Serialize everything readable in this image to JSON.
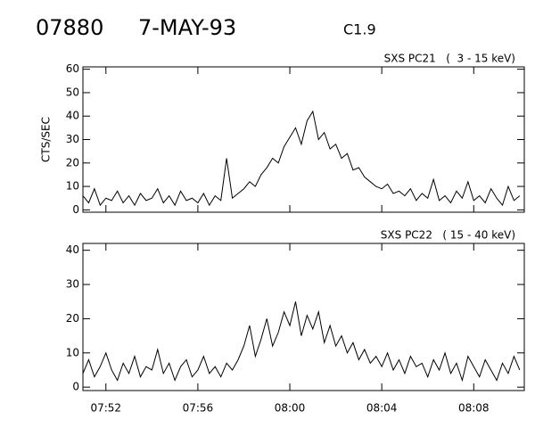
{
  "header": {
    "id": "07880",
    "date": "7-MAY-93",
    "class": "C1.9"
  },
  "chart_data": [
    {
      "type": "line",
      "title": "SXS PC21   (  3 - 15 keV)",
      "ylabel": "CTS/SEC",
      "xlim": [
        471,
        490.2
      ],
      "ylim": [
        -1,
        61
      ],
      "yticks": [
        0,
        10,
        20,
        30,
        40,
        50,
        60
      ],
      "x": [
        471,
        471.25,
        471.5,
        471.75,
        472,
        472.25,
        472.5,
        472.75,
        473,
        473.25,
        473.5,
        473.75,
        474,
        474.25,
        474.5,
        474.75,
        475,
        475.25,
        475.5,
        475.75,
        476,
        476.25,
        476.5,
        476.75,
        477,
        477.25,
        477.5,
        477.75,
        478,
        478.25,
        478.5,
        478.75,
        479,
        479.25,
        479.5,
        479.75,
        480,
        480.25,
        480.5,
        480.75,
        481,
        481.25,
        481.5,
        481.75,
        482,
        482.25,
        482.5,
        482.75,
        483,
        483.25,
        483.5,
        483.75,
        484,
        484.25,
        484.5,
        484.75,
        485,
        485.25,
        485.5,
        485.75,
        486,
        486.25,
        486.5,
        486.75,
        487,
        487.25,
        487.5,
        487.75,
        488,
        488.25,
        488.5,
        488.75,
        489,
        489.25,
        489.5,
        489.75,
        490
      ],
      "values": [
        6,
        3,
        9,
        2,
        5,
        4,
        8,
        3,
        6,
        2,
        7,
        4,
        5,
        9,
        3,
        6,
        2,
        8,
        4,
        5,
        3,
        7,
        2,
        6,
        4,
        22,
        5,
        7,
        9,
        12,
        10,
        15,
        18,
        22,
        20,
        27,
        31,
        35,
        28,
        38,
        42,
        30,
        33,
        26,
        28,
        22,
        24,
        17,
        18,
        14,
        12,
        10,
        9,
        11,
        7,
        8,
        6,
        9,
        4,
        7,
        5,
        13,
        4,
        6,
        3,
        8,
        5,
        12,
        4,
        6,
        3,
        9,
        5,
        2,
        10,
        4,
        6
      ],
      "color": "#000000"
    },
    {
      "type": "line",
      "title": "SXS PC22   ( 15 - 40 keV)",
      "xlim": [
        471,
        490.2
      ],
      "ylim": [
        -1,
        42
      ],
      "yticks": [
        0,
        10,
        20,
        30,
        40
      ],
      "xticks": [
        {
          "value": 472,
          "label": "07:52"
        },
        {
          "value": 476,
          "label": "07:56"
        },
        {
          "value": 480,
          "label": "08:00"
        },
        {
          "value": 484,
          "label": "08:04"
        },
        {
          "value": 488,
          "label": "08:08"
        }
      ],
      "x": [
        471,
        471.25,
        471.5,
        471.75,
        472,
        472.25,
        472.5,
        472.75,
        473,
        473.25,
        473.5,
        473.75,
        474,
        474.25,
        474.5,
        474.75,
        475,
        475.25,
        475.5,
        475.75,
        476,
        476.25,
        476.5,
        476.75,
        477,
        477.25,
        477.5,
        477.75,
        478,
        478.25,
        478.5,
        478.75,
        479,
        479.25,
        479.5,
        479.75,
        480,
        480.25,
        480.5,
        480.75,
        481,
        481.25,
        481.5,
        481.75,
        482,
        482.25,
        482.5,
        482.75,
        483,
        483.25,
        483.5,
        483.75,
        484,
        484.25,
        484.5,
        484.75,
        485,
        485.25,
        485.5,
        485.75,
        486,
        486.25,
        486.5,
        486.75,
        487,
        487.25,
        487.5,
        487.75,
        488,
        488.25,
        488.5,
        488.75,
        489,
        489.25,
        489.5,
        489.75,
        490
      ],
      "values": [
        4,
        8,
        3,
        6,
        10,
        5,
        2,
        7,
        4,
        9,
        3,
        6,
        5,
        11,
        4,
        7,
        2,
        6,
        8,
        3,
        5,
        9,
        4,
        6,
        3,
        7,
        5,
        8,
        12,
        18,
        9,
        14,
        20,
        12,
        16,
        22,
        18,
        25,
        15,
        21,
        17,
        22,
        13,
        18,
        12,
        15,
        10,
        13,
        8,
        11,
        7,
        9,
        6,
        10,
        5,
        8,
        4,
        9,
        6,
        7,
        3,
        8,
        5,
        10,
        4,
        7,
        2,
        9,
        6,
        3,
        8,
        5,
        2,
        7,
        4,
        9,
        5
      ],
      "color": "#000000"
    }
  ]
}
